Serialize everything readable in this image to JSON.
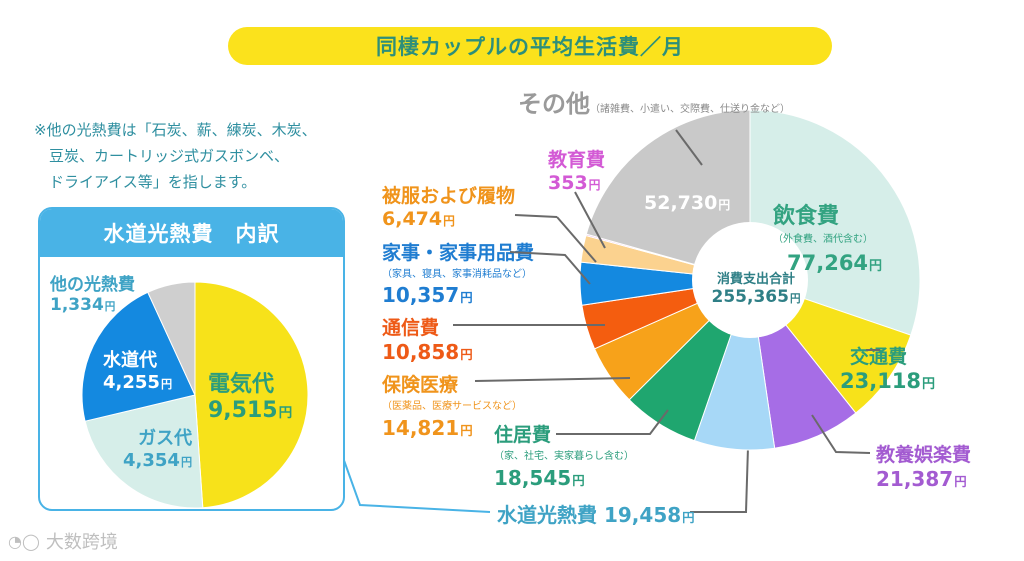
{
  "title": "同棲カップルの平均生活費／月",
  "note": {
    "lines": [
      "※他の光熱費は「石炭、薪、練炭、木炭、",
      "　豆炭、カートリッジ式ガスボンベ、",
      "　ドライアイス等」を指します。"
    ]
  },
  "currency_unit": "円",
  "watermark": "大数跨境",
  "colors": {
    "title_bg": "#fbe21c",
    "title_text": "#2d8f7a",
    "panel_border": "#49b3e6"
  },
  "chart_data": [
    {
      "type": "pie",
      "title": "同棲カップルの平均生活費／月",
      "center_label": {
        "name": "消費支出合計",
        "value": "255,365"
      },
      "slices": [
        {
          "key": "other",
          "label": "その他",
          "note": "（諸雑費、小遣い、交際費、仕送り金など）",
          "value": 52730,
          "value_text": "52,730",
          "color": "#c9c9c9",
          "label_color": "#9a9a9a"
        },
        {
          "key": "food",
          "label": "飲食費",
          "note": "（外食費、酒代含む）",
          "value": 77264,
          "value_text": "77,264",
          "color": "#d6eee9",
          "label_color": "#33a381"
        },
        {
          "key": "transport",
          "label": "交通費",
          "note": "",
          "value": 23118,
          "value_text": "23,118",
          "color": "#f7e21a",
          "label_color": "#2b9d7c"
        },
        {
          "key": "culture",
          "label": "教養娯楽費",
          "note": "",
          "value": 21387,
          "value_text": "21,387",
          "color": "#a66de6",
          "label_color": "#a35bd1"
        },
        {
          "key": "utilities",
          "label": "水道光熱費",
          "note": "",
          "value": 19458,
          "value_text": "19,458",
          "color": "#a7d8f7",
          "label_color": "#3fa3c5"
        },
        {
          "key": "housing",
          "label": "住居費",
          "note": "（家、社宅、実家暮らし含む）",
          "value": 18545,
          "value_text": "18,545",
          "color": "#1fa66f",
          "label_color": "#2b9d7c"
        },
        {
          "key": "medical",
          "label": "保険医療",
          "note": "（医薬品、医療サービスなど）",
          "value": 14821,
          "value_text": "14,821",
          "color": "#f7a21a",
          "label_color": "#f0941c"
        },
        {
          "key": "telecom",
          "label": "通信費",
          "note": "",
          "value": 10858,
          "value_text": "10,858",
          "color": "#f45d0f",
          "label_color": "#ee5a17"
        },
        {
          "key": "household",
          "label": "家事・家事用品費",
          "note": "（家具、寝具、家事消耗品など）",
          "value": 10357,
          "value_text": "10,357",
          "color": "#1489e0",
          "label_color": "#1f7dd1"
        },
        {
          "key": "clothing",
          "label": "被服および履物",
          "note": "",
          "value": 6474,
          "value_text": "6,474",
          "color": "#fbd28f",
          "label_color": "#f0941c"
        },
        {
          "key": "education",
          "label": "教育費",
          "note": "",
          "value": 353,
          "value_text": "353",
          "color": "#e7a3e8",
          "label_color": "#d35ad5"
        }
      ]
    },
    {
      "type": "pie",
      "title": "水道光熱費　内訳",
      "slices": [
        {
          "key": "electric",
          "label": "電気代",
          "value": 9515,
          "value_text": "9,515",
          "color": "#f7e21a",
          "label_color": "#2b9d7c"
        },
        {
          "key": "gas",
          "label": "ガス代",
          "value": 4354,
          "value_text": "4,354",
          "color": "#d6eee9",
          "label_color": "#3fa3c5"
        },
        {
          "key": "water",
          "label": "水道代",
          "value": 4255,
          "value_text": "4,255",
          "color": "#1489e0",
          "label_color": "#ffffff"
        },
        {
          "key": "other_utility",
          "label": "他の光熱費",
          "value": 1334,
          "value_text": "1,334",
          "color": "#cfcfcf",
          "label_color": "#3fa3c5"
        }
      ]
    }
  ]
}
